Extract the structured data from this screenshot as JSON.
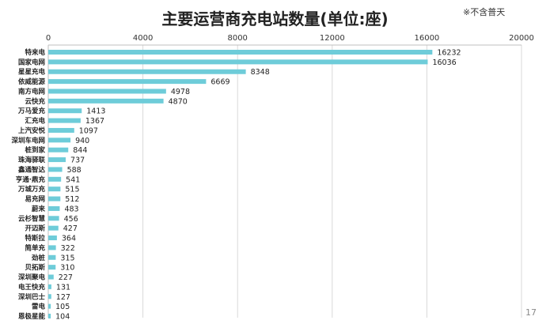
{
  "chart_data": {
    "type": "bar",
    "orientation": "horizontal",
    "title": "主要运营商充电站数量(单位:座)",
    "note": "※不含普天",
    "xlabel": "",
    "ylabel": "",
    "xlim": [
      0,
      20000
    ],
    "x_ticks": [
      0,
      4000,
      8000,
      12000,
      16000,
      20000
    ],
    "x_axis_position": "top",
    "grid": "vertical",
    "bar_color": "#6ECCD9",
    "categories": [
      "特来电",
      "国家电网",
      "星星充电",
      "依威能源",
      "南方电网",
      "云快充",
      "万马爱充",
      "汇充电",
      "上汽安悦",
      "深圳车电网",
      "桩到家",
      "珠海驿联",
      "鑫通智达",
      "亨通·鼎充",
      "万城万充",
      "易充网",
      "蔚来",
      "云杉智慧",
      "开迈斯",
      "特斯拉",
      "简单充",
      "劲桩",
      "贝拓斯",
      "深圳聚电",
      "电王快充",
      "深圳巴士",
      "雷电",
      "恩极星能"
    ],
    "values": [
      16232,
      16036,
      8348,
      6669,
      4978,
      4870,
      1413,
      1367,
      1097,
      940,
      844,
      737,
      588,
      541,
      515,
      512,
      483,
      456,
      427,
      364,
      322,
      315,
      310,
      227,
      131,
      127,
      105,
      104
    ]
  },
  "page_number": "17"
}
